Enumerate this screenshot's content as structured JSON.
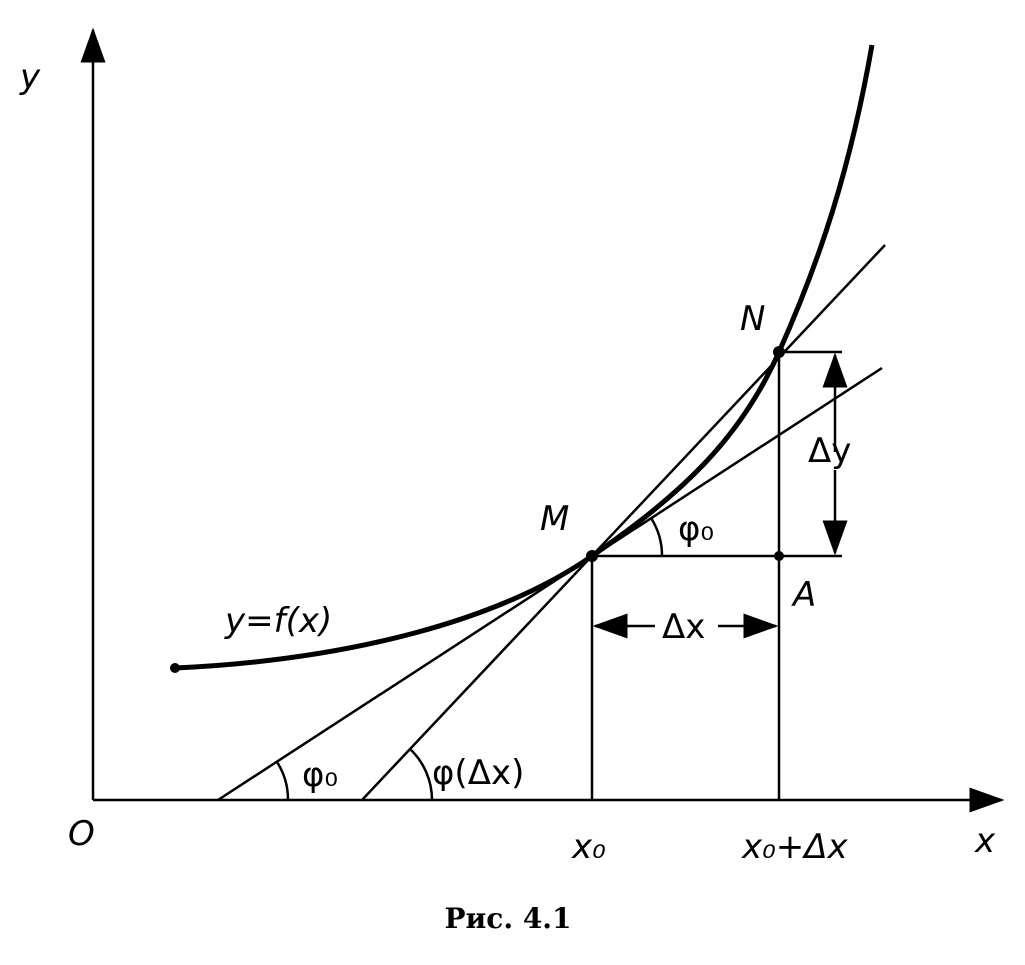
{
  "axes": {
    "y": "y",
    "x": "x",
    "origin": "O"
  },
  "curve_label": "y=f(x)",
  "points": {
    "m": "M",
    "n": "N",
    "a": "A"
  },
  "increments": {
    "dy": "Δy",
    "dx": "Δx"
  },
  "angles": {
    "tangent_at_m": "φ₀",
    "tangent_at_axis": "φ₀",
    "secant": "φ(Δx)"
  },
  "x_ticks": {
    "x0": "x₀",
    "x0_plus_dx": "x₀+Δx"
  },
  "caption": "Рис. 4.1"
}
